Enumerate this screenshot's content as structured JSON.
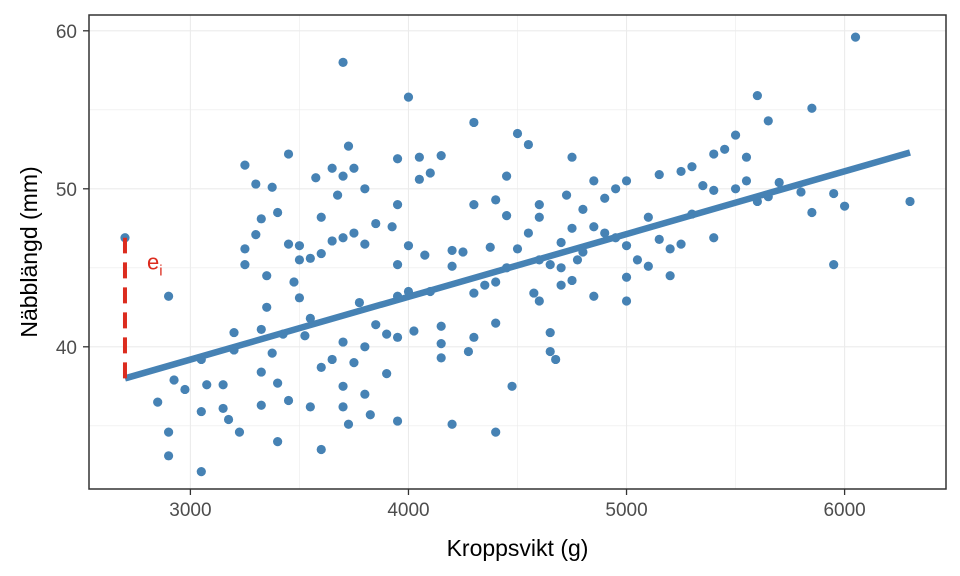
{
  "chart_data": {
    "type": "scatter",
    "xlabel": "Kroppsvikt (g)",
    "ylabel": "Näbblängd (mm)",
    "xlim": [
      2535,
      6465
    ],
    "ylim": [
      31,
      61
    ],
    "x_ticks": [
      3000,
      4000,
      5000,
      6000
    ],
    "y_ticks": [
      40,
      50,
      60
    ],
    "grid": true,
    "colors": {
      "points": "#4682b4",
      "line": "#4682b4",
      "residual": "#dc2c1f",
      "panel_border": "#333333",
      "grid": "#ebebeb"
    },
    "regression_line": {
      "x": [
        2700,
        6300
      ],
      "y": [
        38.0,
        52.3
      ]
    },
    "residual": {
      "x": 2700,
      "y_from": 38.0,
      "y_to": 46.9,
      "label": "e",
      "subscript": "i"
    },
    "points": [
      [
        2700,
        46.9
      ],
      [
        2850,
        36.5
      ],
      [
        2900,
        43.2
      ],
      [
        2900,
        34.6
      ],
      [
        2900,
        33.1
      ],
      [
        2925,
        37.9
      ],
      [
        2975,
        37.3
      ],
      [
        3050,
        32.1
      ],
      [
        3050,
        35.9
      ],
      [
        3050,
        39.2
      ],
      [
        3075,
        37.6
      ],
      [
        3150,
        36.1
      ],
      [
        3150,
        37.6
      ],
      [
        3175,
        35.4
      ],
      [
        3200,
        40.9
      ],
      [
        3200,
        39.8
      ],
      [
        3225,
        34.6
      ],
      [
        3250,
        51.5
      ],
      [
        3250,
        46.2
      ],
      [
        3250,
        45.2
      ],
      [
        3300,
        50.3
      ],
      [
        3300,
        47.1
      ],
      [
        3325,
        48.1
      ],
      [
        3325,
        41.1
      ],
      [
        3325,
        38.4
      ],
      [
        3325,
        36.3
      ],
      [
        3350,
        44.5
      ],
      [
        3350,
        42.5
      ],
      [
        3375,
        50.1
      ],
      [
        3375,
        39.6
      ],
      [
        3400,
        48.5
      ],
      [
        3400,
        37.7
      ],
      [
        3400,
        34.0
      ],
      [
        3425,
        40.8
      ],
      [
        3450,
        52.2
      ],
      [
        3450,
        46.5
      ],
      [
        3450,
        36.6
      ],
      [
        3475,
        44.1
      ],
      [
        3500,
        46.4
      ],
      [
        3500,
        45.5
      ],
      [
        3500,
        43.1
      ],
      [
        3525,
        40.7
      ],
      [
        3550,
        45.6
      ],
      [
        3550,
        41.8
      ],
      [
        3550,
        36.2
      ],
      [
        3575,
        50.7
      ],
      [
        3600,
        48.2
      ],
      [
        3600,
        45.9
      ],
      [
        3600,
        38.7
      ],
      [
        3600,
        33.5
      ],
      [
        3650,
        51.3
      ],
      [
        3650,
        46.7
      ],
      [
        3650,
        39.2
      ],
      [
        3675,
        49.6
      ],
      [
        3700,
        58.0
      ],
      [
        3700,
        50.8
      ],
      [
        3700,
        46.9
      ],
      [
        3700,
        40.3
      ],
      [
        3700,
        37.5
      ],
      [
        3700,
        36.2
      ],
      [
        3725,
        52.7
      ],
      [
        3725,
        35.1
      ],
      [
        3750,
        51.3
      ],
      [
        3750,
        47.2
      ],
      [
        3750,
        39.0
      ],
      [
        3775,
        42.8
      ],
      [
        3800,
        50.0
      ],
      [
        3800,
        46.5
      ],
      [
        3800,
        40.0
      ],
      [
        3800,
        37.0
      ],
      [
        3825,
        35.7
      ],
      [
        3850,
        41.4
      ],
      [
        3850,
        47.8
      ],
      [
        3900,
        40.8
      ],
      [
        3900,
        38.3
      ],
      [
        3925,
        47.6
      ],
      [
        3950,
        51.9
      ],
      [
        3950,
        45.2
      ],
      [
        3950,
        49.0
      ],
      [
        3950,
        43.2
      ],
      [
        3950,
        40.6
      ],
      [
        3950,
        35.3
      ],
      [
        4000,
        55.8
      ],
      [
        4000,
        46.4
      ],
      [
        4000,
        43.5
      ],
      [
        4025,
        41.0
      ],
      [
        4050,
        52.0
      ],
      [
        4050,
        50.6
      ],
      [
        4075,
        45.8
      ],
      [
        4100,
        51.0
      ],
      [
        4100,
        43.5
      ],
      [
        4150,
        52.1
      ],
      [
        4150,
        41.3
      ],
      [
        4150,
        40.2
      ],
      [
        4150,
        39.3
      ],
      [
        4200,
        46.1
      ],
      [
        4200,
        45.1
      ],
      [
        4200,
        35.1
      ],
      [
        4250,
        46.0
      ],
      [
        4275,
        39.7
      ],
      [
        4300,
        54.2
      ],
      [
        4300,
        49.0
      ],
      [
        4300,
        43.4
      ],
      [
        4300,
        40.6
      ],
      [
        4350,
        43.9
      ],
      [
        4375,
        46.3
      ],
      [
        4400,
        49.3
      ],
      [
        4400,
        44.1
      ],
      [
        4400,
        41.5
      ],
      [
        4400,
        34.6
      ],
      [
        4450,
        50.8
      ],
      [
        4450,
        48.3
      ],
      [
        4450,
        45.0
      ],
      [
        4475,
        37.5
      ],
      [
        4500,
        53.5
      ],
      [
        4500,
        46.2
      ],
      [
        4550,
        52.8
      ],
      [
        4550,
        47.2
      ],
      [
        4575,
        43.4
      ],
      [
        4600,
        49.0
      ],
      [
        4600,
        48.2
      ],
      [
        4600,
        45.5
      ],
      [
        4600,
        42.9
      ],
      [
        4650,
        45.2
      ],
      [
        4650,
        40.9
      ],
      [
        4650,
        39.7
      ],
      [
        4675,
        39.2
      ],
      [
        4700,
        46.6
      ],
      [
        4700,
        45.0
      ],
      [
        4700,
        43.9
      ],
      [
        4725,
        49.6
      ],
      [
        4750,
        52.0
      ],
      [
        4750,
        47.5
      ],
      [
        4750,
        44.2
      ],
      [
        4775,
        45.5
      ],
      [
        4800,
        48.7
      ],
      [
        4800,
        46.0
      ],
      [
        4850,
        50.5
      ],
      [
        4850,
        47.6
      ],
      [
        4850,
        43.2
      ],
      [
        4900,
        49.4
      ],
      [
        4900,
        47.2
      ],
      [
        4950,
        50.0
      ],
      [
        4950,
        46.9
      ],
      [
        5000,
        50.5
      ],
      [
        5000,
        46.4
      ],
      [
        5000,
        44.4
      ],
      [
        5000,
        42.9
      ],
      [
        5050,
        45.5
      ],
      [
        5100,
        48.2
      ],
      [
        5100,
        45.1
      ],
      [
        5150,
        50.9
      ],
      [
        5150,
        46.8
      ],
      [
        5200,
        46.2
      ],
      [
        5200,
        44.5
      ],
      [
        5250,
        51.1
      ],
      [
        5250,
        46.5
      ],
      [
        5300,
        51.4
      ],
      [
        5300,
        48.4
      ],
      [
        5350,
        50.2
      ],
      [
        5400,
        52.2
      ],
      [
        5400,
        49.9
      ],
      [
        5400,
        46.9
      ],
      [
        5450,
        52.5
      ],
      [
        5500,
        53.4
      ],
      [
        5500,
        50.0
      ],
      [
        5550,
        52.0
      ],
      [
        5550,
        50.5
      ],
      [
        5600,
        55.9
      ],
      [
        5600,
        49.2
      ],
      [
        5650,
        54.3
      ],
      [
        5650,
        49.5
      ],
      [
        5700,
        50.4
      ],
      [
        5800,
        49.8
      ],
      [
        5850,
        55.1
      ],
      [
        5850,
        48.5
      ],
      [
        5950,
        49.7
      ],
      [
        5950,
        45.2
      ],
      [
        6000,
        48.9
      ],
      [
        6050,
        59.6
      ],
      [
        6300,
        49.2
      ]
    ]
  }
}
